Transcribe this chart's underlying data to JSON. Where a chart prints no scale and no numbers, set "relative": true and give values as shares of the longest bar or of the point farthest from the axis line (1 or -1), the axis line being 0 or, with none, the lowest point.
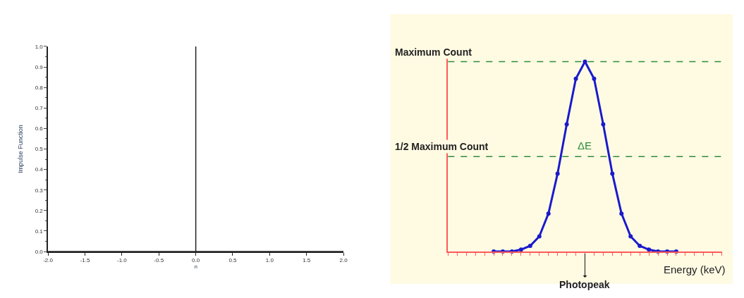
{
  "chart_data": [
    {
      "type": "line",
      "xlabel": "n",
      "ylabel": "Impulse Function",
      "grid": false,
      "marker": "none",
      "xlim": [
        -2,
        2
      ],
      "ylim": [
        0,
        1
      ],
      "xticks": [
        {
          "value": -2,
          "label": "-2.0"
        },
        {
          "value": -1.5,
          "label": "-1.5"
        },
        {
          "value": -1,
          "label": "-1.0"
        },
        {
          "value": -0.5,
          "label": "-0.5"
        },
        {
          "value": 0,
          "label": "0.0"
        },
        {
          "value": 0.5,
          "label": "0.5"
        },
        {
          "value": 1,
          "label": "1.0"
        },
        {
          "value": 1.5,
          "label": "1.5"
        },
        {
          "value": 2,
          "label": "2.0"
        }
      ],
      "yticks": [
        {
          "value": 0,
          "label": "0.0"
        },
        {
          "value": 0.1,
          "label": "0.1"
        },
        {
          "value": 0.2,
          "label": "0.2"
        },
        {
          "value": 0.3,
          "label": "0.3"
        },
        {
          "value": 0.4,
          "label": "0.4"
        },
        {
          "value": 0.5,
          "label": "0.5"
        },
        {
          "value": 0.6,
          "label": "0.6"
        },
        {
          "value": 0.7,
          "label": "0.7"
        },
        {
          "value": 0.8,
          "label": "0.8"
        },
        {
          "value": 0.9,
          "label": "0.9"
        },
        {
          "value": 1,
          "label": "1.0"
        }
      ],
      "series": [
        {
          "color": "#222222",
          "x": [
            -2,
            0,
            0,
            0,
            2
          ],
          "values": [
            0,
            0,
            1,
            0,
            0
          ]
        }
      ]
    },
    {
      "type": "line",
      "xlabel": "Energy (keV)",
      "relative": true,
      "grid": false,
      "marker": "circle",
      "categories": [
        null,
        null,
        null,
        null,
        null,
        null,
        null,
        null,
        null,
        null,
        null,
        null,
        null,
        null,
        null,
        null,
        null,
        null,
        null,
        null,
        null
      ],
      "series": [
        {
          "color": "#1a1acc",
          "values": [
            0,
            0,
            0,
            0.01,
            0.03,
            0.08,
            0.2,
            0.41,
            0.67,
            0.91,
            1,
            0.91,
            0.67,
            0.41,
            0.2,
            0.08,
            0.03,
            0.01,
            0,
            0,
            0
          ]
        }
      ],
      "ref_lines": [
        {
          "axis": "y",
          "value": 1,
          "label": "Maximum Count",
          "color": "#2e8b3a",
          "line_style": "dashed"
        },
        {
          "axis": "y",
          "value": 0.5,
          "label": "1/2 Maximum Count",
          "color": "#2e8b3a",
          "line_style": "dashed"
        }
      ],
      "annotations": [
        "ΔE",
        "Photopeak"
      ]
    }
  ]
}
